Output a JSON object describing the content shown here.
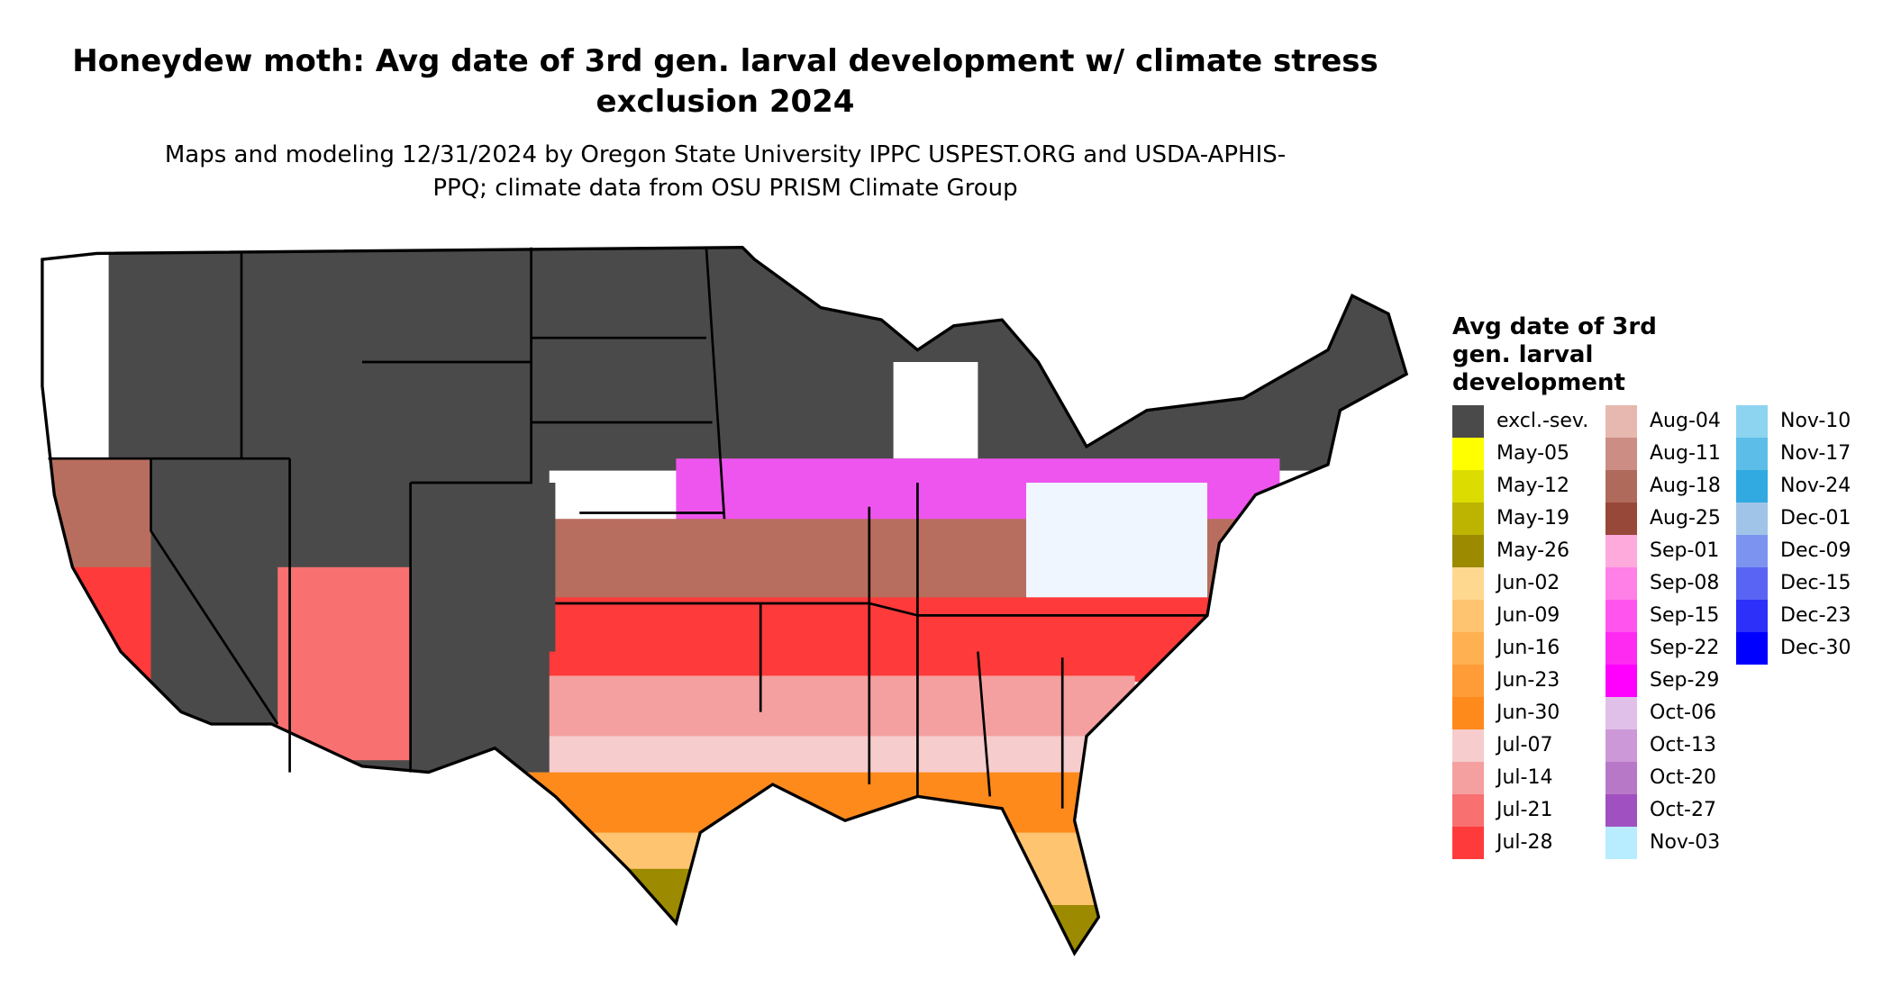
{
  "header": {
    "title": "Honeydew moth: Avg date of 3rd gen. larval development w/ climate stress exclusion 2024",
    "subtitle": "Maps and modeling 12/31/2024 by Oregon State University IPPC USPEST.ORG and USDA-APHIS-PPQ; climate data from OSU PRISM Climate Group"
  },
  "legend": {
    "title": "Avg date of 3rd gen. larval development",
    "items": [
      {
        "label": "excl.-sev.",
        "color": "#4a4a4a"
      },
      {
        "label": "May-05",
        "color": "#ffff00"
      },
      {
        "label": "May-12",
        "color": "#dcdc00"
      },
      {
        "label": "May-19",
        "color": "#bcb400"
      },
      {
        "label": "May-26",
        "color": "#9c8a00"
      },
      {
        "label": "Jun-02",
        "color": "#ffd890"
      },
      {
        "label": "Jun-09",
        "color": "#ffc470"
      },
      {
        "label": "Jun-16",
        "color": "#ffb050"
      },
      {
        "label": "Jun-23",
        "color": "#ff9c38"
      },
      {
        "label": "Jun-30",
        "color": "#ff8a1c"
      },
      {
        "label": "Jul-07",
        "color": "#f6cccc"
      },
      {
        "label": "Jul-14",
        "color": "#f4a0a0"
      },
      {
        "label": "Jul-21",
        "color": "#f87070"
      },
      {
        "label": "Jul-28",
        "color": "#ff3a3a"
      },
      {
        "label": "Aug-04",
        "color": "#e6b8b0"
      },
      {
        "label": "Aug-11",
        "color": "#cc8e84"
      },
      {
        "label": "Aug-18",
        "color": "#b06a5c"
      },
      {
        "label": "Aug-25",
        "color": "#984838"
      },
      {
        "label": "Sep-01",
        "color": "#ffaadd"
      },
      {
        "label": "Sep-08",
        "color": "#ff80e6"
      },
      {
        "label": "Sep-15",
        "color": "#ff55ee"
      },
      {
        "label": "Sep-22",
        "color": "#ff2af2"
      },
      {
        "label": "Sep-29",
        "color": "#ff00ff"
      },
      {
        "label": "Oct-06",
        "color": "#e0c0e8"
      },
      {
        "label": "Oct-13",
        "color": "#cc98d8"
      },
      {
        "label": "Oct-20",
        "color": "#b878c8"
      },
      {
        "label": "Oct-27",
        "color": "#a050c0"
      },
      {
        "label": "Nov-03",
        "color": "#b8ecff"
      },
      {
        "label": "Nov-10",
        "color": "#8cd4f0"
      },
      {
        "label": "Nov-17",
        "color": "#5cbee8"
      },
      {
        "label": "Nov-24",
        "color": "#30aae0"
      },
      {
        "label": "Dec-01",
        "color": "#a0c4e8"
      },
      {
        "label": "Dec-09",
        "color": "#7c94f0"
      },
      {
        "label": "Dec-15",
        "color": "#5a64f4"
      },
      {
        "label": "Dec-23",
        "color": "#2c30f8"
      },
      {
        "label": "Dec-30",
        "color": "#0000ff"
      }
    ]
  }
}
